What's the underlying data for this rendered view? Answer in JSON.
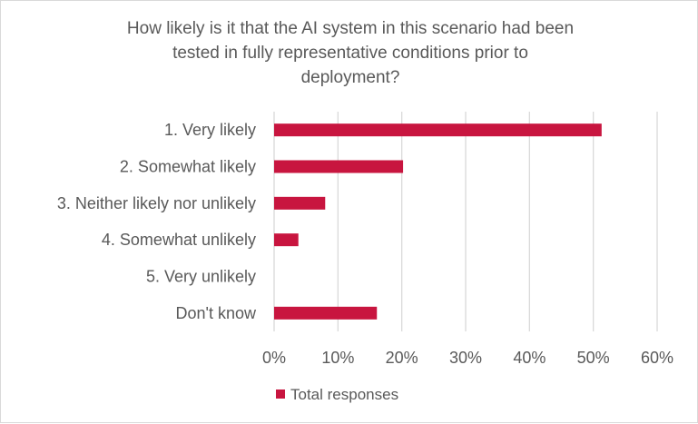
{
  "chart_data": {
    "type": "bar",
    "orientation": "horizontal",
    "title_lines": [
      "How likely is it that the AI system in this scenario had been",
      "tested in fully representative conditions prior to",
      "deployment?"
    ],
    "categories": [
      "1. Very likely",
      "2. Somewhat likely",
      "3. Neither likely nor unlikely",
      "4. Somewhat unlikely",
      "5. Very unlikely",
      "Don't know"
    ],
    "series": [
      {
        "name": "Total responses",
        "values": [
          51.3,
          20.2,
          8.0,
          3.8,
          0,
          16.1
        ],
        "color": "#c8153f"
      }
    ],
    "xlim": [
      0,
      60
    ],
    "xticks": [
      0,
      10,
      20,
      30,
      40,
      50,
      60
    ],
    "xtick_labels": [
      "0%",
      "10%",
      "20%",
      "30%",
      "40%",
      "50%",
      "60%"
    ],
    "grid": "vertical",
    "gridColor": "#d9d9d9",
    "legend": "bottom"
  }
}
